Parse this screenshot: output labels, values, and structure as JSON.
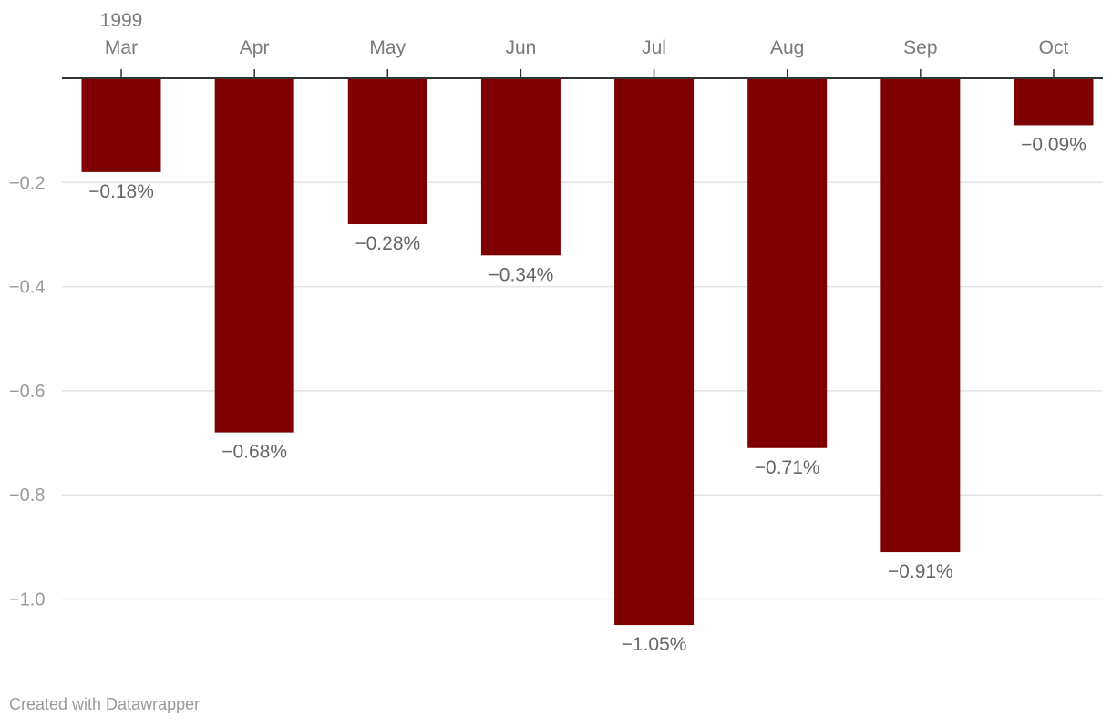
{
  "chart_data": {
    "type": "bar",
    "year_label": "1999",
    "categories": [
      "Mar",
      "Apr",
      "May",
      "Jun",
      "Jul",
      "Aug",
      "Sep",
      "Oct"
    ],
    "values": [
      -0.18,
      -0.68,
      -0.28,
      -0.34,
      -1.05,
      -0.71,
      -0.91,
      -0.09
    ],
    "value_labels": [
      "−0.18%",
      "−0.68%",
      "−0.28%",
      "−0.34%",
      "−1.05%",
      "−0.71%",
      "−0.91%",
      "−0.09%"
    ],
    "y_ticks": [
      -0.2,
      -0.4,
      -0.6,
      -0.8,
      -1.0
    ],
    "y_tick_labels": [
      "−0.2",
      "−0.4",
      "−0.6",
      "−0.8",
      "−1.0"
    ],
    "ylim": [
      -1.05,
      0
    ],
    "grid": true,
    "bar_color": "#7f0000",
    "xaxis_position": "top"
  },
  "footer": {
    "credit": "Created with Datawrapper"
  }
}
